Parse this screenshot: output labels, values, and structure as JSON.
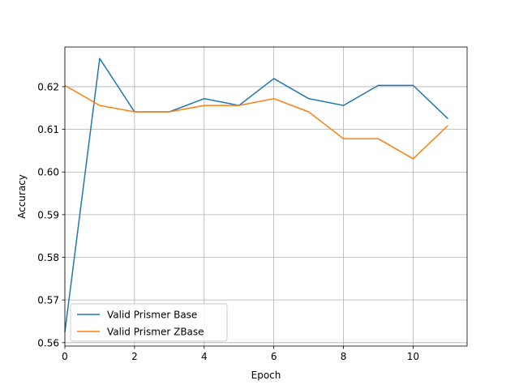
{
  "chart_data": {
    "type": "line",
    "xlabel": "Epoch",
    "ylabel": "Accuracy",
    "xlim": [
      0,
      11.55
    ],
    "ylim": [
      0.5592,
      0.6293
    ],
    "xticks": [
      0,
      2,
      4,
      6,
      8,
      10
    ],
    "yticks": [
      0.56,
      0.57,
      0.58,
      0.59,
      0.6,
      0.61,
      0.62
    ],
    "ytick_labels": [
      "0.56",
      "0.57",
      "0.58",
      "0.59",
      "0.60",
      "0.61",
      "0.62"
    ],
    "grid": true,
    "legend_position": "lower-left",
    "x": [
      0,
      1,
      2,
      3,
      4,
      5,
      6,
      7,
      8,
      9,
      10,
      11
    ],
    "series": [
      {
        "name": "Valid Prismer Base",
        "color": "#1f77b4",
        "values": [
          0.5625,
          0.6266,
          0.6141,
          0.6141,
          0.6172,
          0.6156,
          0.6219,
          0.6172,
          0.6156,
          0.6203,
          0.6203,
          0.6125
        ]
      },
      {
        "name": "Valid Prismer ZBase",
        "color": "#ff7f0e",
        "values": [
          0.6203,
          0.6156,
          0.6141,
          0.6141,
          0.6156,
          0.6156,
          0.6172,
          0.6141,
          0.6078,
          0.6078,
          0.6031,
          0.6109
        ]
      }
    ]
  }
}
